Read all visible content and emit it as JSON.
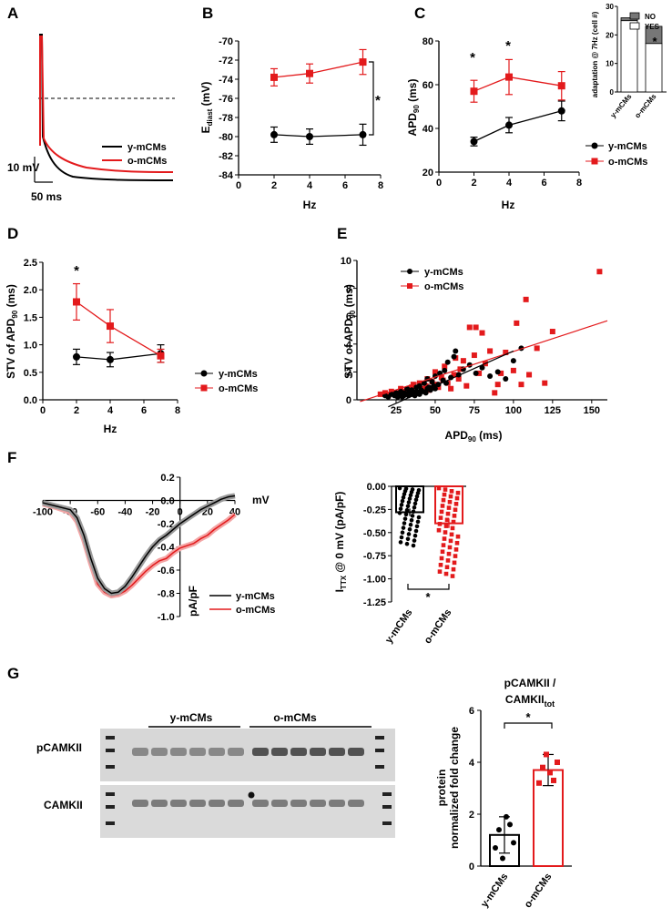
{
  "panels": [
    "A",
    "B",
    "C",
    "D",
    "E",
    "F",
    "G"
  ],
  "colors": {
    "young": "#000000",
    "old": "#e31a1c"
  },
  "chart_data": [
    {
      "panel": "A",
      "type": "line",
      "series": [
        {
          "name": "y-mCMs"
        },
        {
          "name": "o-mCMs"
        }
      ],
      "scale_bars": {
        "voltage": "10 mV",
        "time": "50 ms"
      }
    },
    {
      "panel": "B",
      "type": "line",
      "xlabel": "Hz",
      "ylabel": "E",
      "ylabel_sub": "diast",
      "ylabel_unit": " (mV)",
      "xlim": [
        0,
        8
      ],
      "ylim": [
        -84,
        -70
      ],
      "xticks": [
        0,
        2,
        4,
        6,
        8
      ],
      "yticks": [
        -84,
        -82,
        -80,
        -78,
        -76,
        -74,
        -72,
        -70
      ],
      "series": [
        {
          "name": "y-mCMs",
          "x": [
            2,
            4,
            7
          ],
          "y": [
            -79.8,
            -80.0,
            -79.8
          ],
          "err": [
            0.8,
            0.8,
            1.1
          ]
        },
        {
          "name": "o-mCMs",
          "x": [
            2,
            4,
            7
          ],
          "y": [
            -73.8,
            -73.4,
            -72.2
          ],
          "err": [
            0.9,
            1.0,
            1.3
          ]
        }
      ],
      "annotation": "*"
    },
    {
      "panel": "C",
      "type": "line",
      "xlabel": "Hz",
      "ylabel": "APD",
      "ylabel_sub": "90",
      "ylabel_unit": " (ms)",
      "xlim": [
        0,
        8
      ],
      "ylim": [
        20,
        80
      ],
      "xticks": [
        0,
        2,
        4,
        6,
        8
      ],
      "yticks": [
        20,
        40,
        60,
        80
      ],
      "series": [
        {
          "name": "y-mCMs",
          "x": [
            2,
            4,
            7
          ],
          "y": [
            34,
            41.5,
            48
          ],
          "err": [
            2,
            3.5,
            4.5
          ]
        },
        {
          "name": "o-mCMs",
          "x": [
            2,
            4,
            7
          ],
          "y": [
            57,
            63.5,
            59.5
          ],
          "err": [
            5,
            8,
            6.5
          ]
        }
      ],
      "annotations": [
        "*",
        "*"
      ]
    },
    {
      "panel": "C-inset",
      "type": "bar",
      "ylabel": "adaptation @ 7Hz (cell #)",
      "categories": [
        "y-mCMs",
        "o-mCMs"
      ],
      "ylim": [
        0,
        30
      ],
      "yticks": [
        0,
        10,
        20,
        30
      ],
      "series": [
        {
          "name": "YES",
          "values": [
            25,
            17
          ]
        },
        {
          "name": "NO",
          "values": [
            1,
            6
          ]
        }
      ],
      "annotation": "*"
    },
    {
      "panel": "D",
      "type": "line",
      "xlabel": "Hz",
      "ylabel": "STV of APD",
      "ylabel_sub": "90",
      "ylabel_unit": " (ms)",
      "xlim": [
        0,
        8
      ],
      "ylim": [
        0,
        2.5
      ],
      "xticks": [
        0,
        2,
        4,
        6,
        8
      ],
      "yticks": [
        0.0,
        0.5,
        1.0,
        1.5,
        2.0,
        2.5
      ],
      "series": [
        {
          "name": "y-mCMs",
          "x": [
            2,
            4,
            7
          ],
          "y": [
            0.78,
            0.73,
            0.84
          ],
          "err": [
            0.14,
            0.13,
            0.16
          ]
        },
        {
          "name": "o-mCMs",
          "x": [
            2,
            4,
            7
          ],
          "y": [
            1.78,
            1.34,
            0.8
          ],
          "err": [
            0.33,
            0.3,
            0.12
          ]
        }
      ],
      "annotation": "*"
    },
    {
      "panel": "E",
      "type": "scatter",
      "xlabel": "APD",
      "xlabel_sub": "90",
      "xlabel_unit": " (ms)",
      "ylabel": "STV of APD",
      "ylabel_sub": "90",
      "ylabel_unit": " (ms)",
      "xlim": [
        0,
        160
      ],
      "ylim": [
        0,
        10
      ],
      "xticks": [
        25,
        50,
        75,
        100,
        125,
        150
      ],
      "yticks": [
        0,
        2,
        4,
        6,
        8,
        10
      ],
      "series": [
        {
          "name": "y-mCMs",
          "x": [
            18,
            20,
            22,
            24,
            25,
            26,
            27,
            28,
            28,
            29,
            30,
            30,
            31,
            32,
            33,
            33,
            34,
            35,
            35,
            36,
            37,
            38,
            38,
            39,
            40,
            40,
            41,
            42,
            43,
            44,
            45,
            45,
            46,
            47,
            48,
            49,
            50,
            50,
            52,
            53,
            55,
            56,
            57,
            58,
            60,
            62,
            63,
            65,
            68,
            72,
            76,
            80,
            85,
            90,
            95,
            100,
            105
          ],
          "y": [
            0.3,
            0.2,
            0.4,
            0.3,
            0.5,
            0.2,
            0.4,
            0.3,
            0.6,
            0.2,
            0.5,
            0.3,
            0.4,
            0.8,
            0.3,
            0.5,
            0.6,
            0.4,
            0.7,
            0.5,
            0.3,
            0.9,
            0.6,
            0.5,
            0.4,
            1.0,
            0.7,
            0.6,
            1.2,
            0.5,
            0.8,
            1.5,
            0.9,
            0.7,
            1.3,
            1.0,
            0.8,
            1.7,
            1.1,
            1.9,
            1.4,
            2.1,
            1.2,
            2.7,
            1.6,
            3.1,
            3.5,
            1.8,
            2.2,
            2.5,
            1.9,
            2.3,
            1.7,
            2.0,
            1.5,
            2.8,
            3.7
          ]
        },
        {
          "name": "o-mCMs",
          "x": [
            15,
            18,
            20,
            22,
            25,
            28,
            30,
            32,
            35,
            36,
            38,
            40,
            42,
            44,
            45,
            46,
            48,
            50,
            50,
            52,
            54,
            55,
            56,
            58,
            60,
            62,
            63,
            65,
            66,
            68,
            70,
            72,
            75,
            76,
            78,
            80,
            82,
            85,
            88,
            90,
            92,
            95,
            100,
            102,
            105,
            108,
            110,
            115,
            120,
            125,
            155
          ],
          "y": [
            0.4,
            0.5,
            0.3,
            0.6,
            0.5,
            0.8,
            0.6,
            0.7,
            0.9,
            1.1,
            0.5,
            1.2,
            0.8,
            1.0,
            1.5,
            0.7,
            1.3,
            2.0,
            1.1,
            0.9,
            1.6,
            1.4,
            2.4,
            1.2,
            0.8,
            1.8,
            3.0,
            1.5,
            2.2,
            2.8,
            1.0,
            5.2,
            3.2,
            5.2,
            1.9,
            4.8,
            2.6,
            3.5,
            0.5,
            1.1,
            1.9,
            3.4,
            2.1,
            5.5,
            1.1,
            7.2,
            1.8,
            3.7,
            1.2,
            4.9,
            9.2
          ]
        }
      ],
      "fits": [
        {
          "name": "y-mCMs",
          "slope": 0.05,
          "intercept": -1.5
        },
        {
          "name": "o-mCMs",
          "slope": 0.0367,
          "intercept": -0.2
        }
      ]
    },
    {
      "panel": "F-left",
      "type": "line",
      "xlabel": "mV",
      "ylabel": "pA/pF",
      "xlim": [
        -100,
        40
      ],
      "ylim": [
        -1.0,
        0.2
      ],
      "xticks": [
        -100,
        -80,
        -60,
        -40,
        -20,
        0,
        20,
        40
      ],
      "yticks": [
        0.2,
        0.0,
        -0.2,
        -0.4,
        -0.6,
        -0.8,
        -1.0
      ],
      "series": [
        {
          "name": "y-mCMs",
          "x": [
            -100,
            -90,
            -80,
            -75,
            -70,
            -65,
            -60,
            -55,
            -50,
            -45,
            -40,
            -35,
            -30,
            -25,
            -20,
            -15,
            -10,
            -5,
            0,
            5,
            10,
            15,
            20,
            25,
            30,
            35,
            40
          ],
          "y": [
            -0.02,
            -0.05,
            -0.08,
            -0.15,
            -0.3,
            -0.5,
            -0.67,
            -0.76,
            -0.8,
            -0.79,
            -0.74,
            -0.66,
            -0.57,
            -0.48,
            -0.4,
            -0.34,
            -0.3,
            -0.25,
            -0.2,
            -0.16,
            -0.12,
            -0.08,
            -0.05,
            -0.02,
            0.01,
            0.03,
            0.04
          ]
        },
        {
          "name": "o-mCMs",
          "x": [
            -100,
            -90,
            -80,
            -75,
            -70,
            -65,
            -60,
            -55,
            -50,
            -45,
            -40,
            -35,
            -30,
            -25,
            -20,
            -15,
            -10,
            -5,
            0,
            5,
            10,
            15,
            20,
            25,
            30,
            35,
            40
          ],
          "y": [
            -0.03,
            -0.06,
            -0.1,
            -0.18,
            -0.34,
            -0.54,
            -0.72,
            -0.79,
            -0.82,
            -0.81,
            -0.78,
            -0.73,
            -0.67,
            -0.61,
            -0.56,
            -0.52,
            -0.5,
            -0.45,
            -0.41,
            -0.39,
            -0.37,
            -0.33,
            -0.3,
            -0.25,
            -0.21,
            -0.17,
            -0.12
          ]
        }
      ]
    },
    {
      "panel": "F-right",
      "type": "bar",
      "ylabel": "I",
      "ylabel_sub": "TTX",
      "ylabel_unit": " @ 0 mV (pA/pF)",
      "categories": [
        "y-mCMs",
        "o-mCMs"
      ],
      "values": [
        -0.28,
        -0.4
      ],
      "err": [
        0.04,
        0.05
      ],
      "ylim": [
        -1.25,
        0.0
      ],
      "yticks": [
        0.0,
        -0.25,
        -0.5,
        -0.75,
        -1.0,
        -1.25
      ],
      "annotation": "*"
    },
    {
      "panel": "G",
      "type": "bar",
      "title_line1": "pCAMKII /",
      "title_line2": "CAMKII",
      "title_sub": "tot",
      "ylabel_line1": "protein",
      "ylabel_line2": "normalized fold change",
      "categories": [
        "y-mCMs",
        "o-mCMs"
      ],
      "values": [
        1.2,
        3.7
      ],
      "err": [
        0.7,
        0.6
      ],
      "points": [
        [
          0.7,
          1.4,
          0.3,
          1.9,
          1.6,
          0.9
        ],
        [
          3.2,
          3.8,
          4.3,
          3.6,
          3.3,
          4.0
        ]
      ],
      "ylim": [
        0,
        6
      ],
      "yticks": [
        0,
        2,
        4,
        6
      ],
      "annotation": "*",
      "blot": {
        "group_labels": [
          "y-mCMs",
          "o-mCMs"
        ],
        "rows": [
          "pCAMKII",
          "CAMKII"
        ]
      }
    }
  ]
}
